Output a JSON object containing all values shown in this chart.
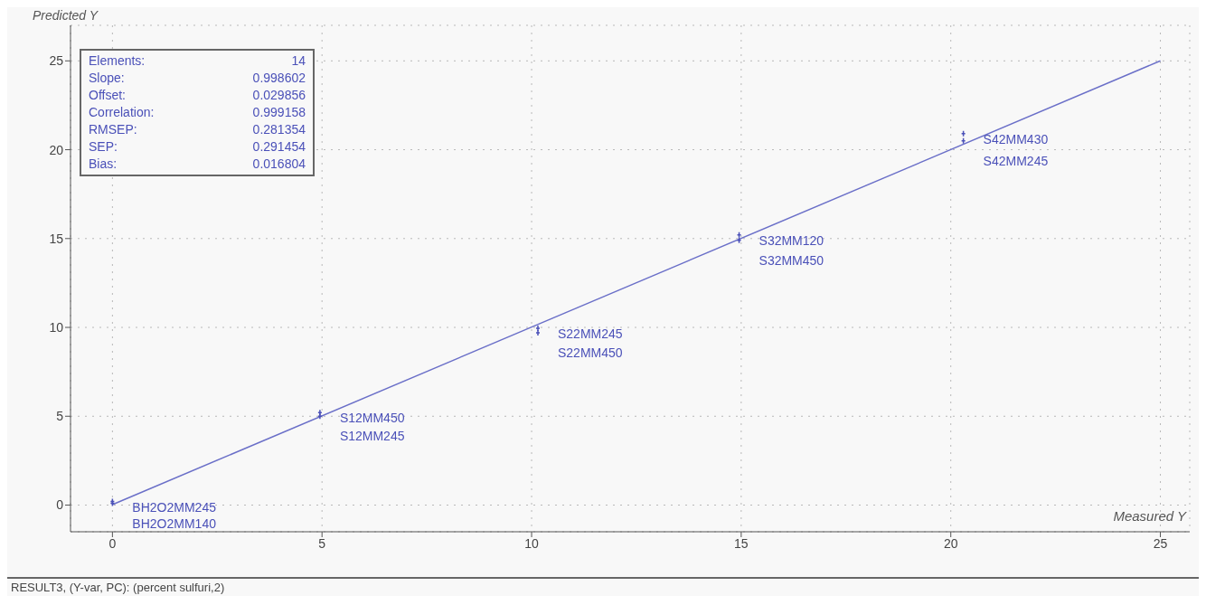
{
  "chart_data": {
    "type": "scatter",
    "xlabel": "Measured Y",
    "ylabel": "Predicted Y",
    "xlim": [
      -1,
      25.7
    ],
    "ylim": [
      -1.5,
      27
    ],
    "xticks": [
      0,
      5,
      10,
      15,
      20,
      25
    ],
    "yticks": [
      0,
      5,
      10,
      15,
      20,
      25
    ],
    "grid": true,
    "legend": false,
    "series": [
      {
        "marker": "cross",
        "color": "#4a50b8",
        "x": [
          0,
          0,
          4.95,
          4.95,
          10.15,
          10.15,
          14.95,
          14.95,
          20.3,
          20.3
        ],
        "values": [
          0.1,
          0.2,
          5.0,
          5.2,
          9.7,
          9.95,
          14.9,
          15.2,
          20.5,
          20.9
        ]
      },
      {
        "type": "line",
        "color": "#6a6fc8",
        "line_style": "solid",
        "x": [
          0,
          25
        ],
        "values": [
          0.03,
          25
        ]
      }
    ],
    "annotations": [
      "Elements: 14",
      "Slope: 0.998602",
      "Offset: 0.029856",
      "Correlation: 0.999158",
      "RMSEP: 0.281354",
      "SEP: 0.291454",
      "Bias: 0.016804",
      {
        "text": "BH2O2MM245",
        "x": 0,
        "y": 0.2
      },
      {
        "text": "BH2O2MM140",
        "x": 0,
        "y": 0.1
      },
      {
        "text": "S12MM450",
        "x": 4.95,
        "y": 5.2
      },
      {
        "text": "S12MM245",
        "x": 4.95,
        "y": 5.0
      },
      {
        "text": "S22MM245",
        "x": 10.15,
        "y": 9.95
      },
      {
        "text": "S22MM450",
        "x": 10.15,
        "y": 9.7
      },
      {
        "text": "S32MM120",
        "x": 14.95,
        "y": 15.2
      },
      {
        "text": "S32MM450",
        "x": 14.95,
        "y": 14.9
      },
      {
        "text": "S42MM430",
        "x": 20.3,
        "y": 20.9
      },
      {
        "text": "S42MM245",
        "x": 20.3,
        "y": 20.5
      },
      "RESULT3, (Y-var, PC): (percent sulfuri,2)"
    ]
  }
}
